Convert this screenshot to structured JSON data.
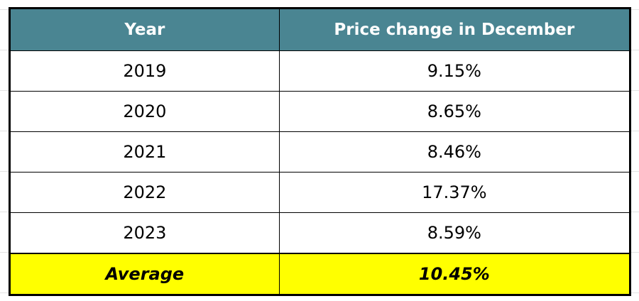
{
  "table": {
    "header": [
      "Year",
      "Price change in December"
    ],
    "rows": [
      [
        "2019",
        "9.15%"
      ],
      [
        "2020",
        "8.65%"
      ],
      [
        "2021",
        "8.46%"
      ],
      [
        "2022",
        "17.37%"
      ],
      [
        "2023",
        "8.59%"
      ]
    ],
    "footer": [
      "Average",
      "10.45%"
    ]
  }
}
